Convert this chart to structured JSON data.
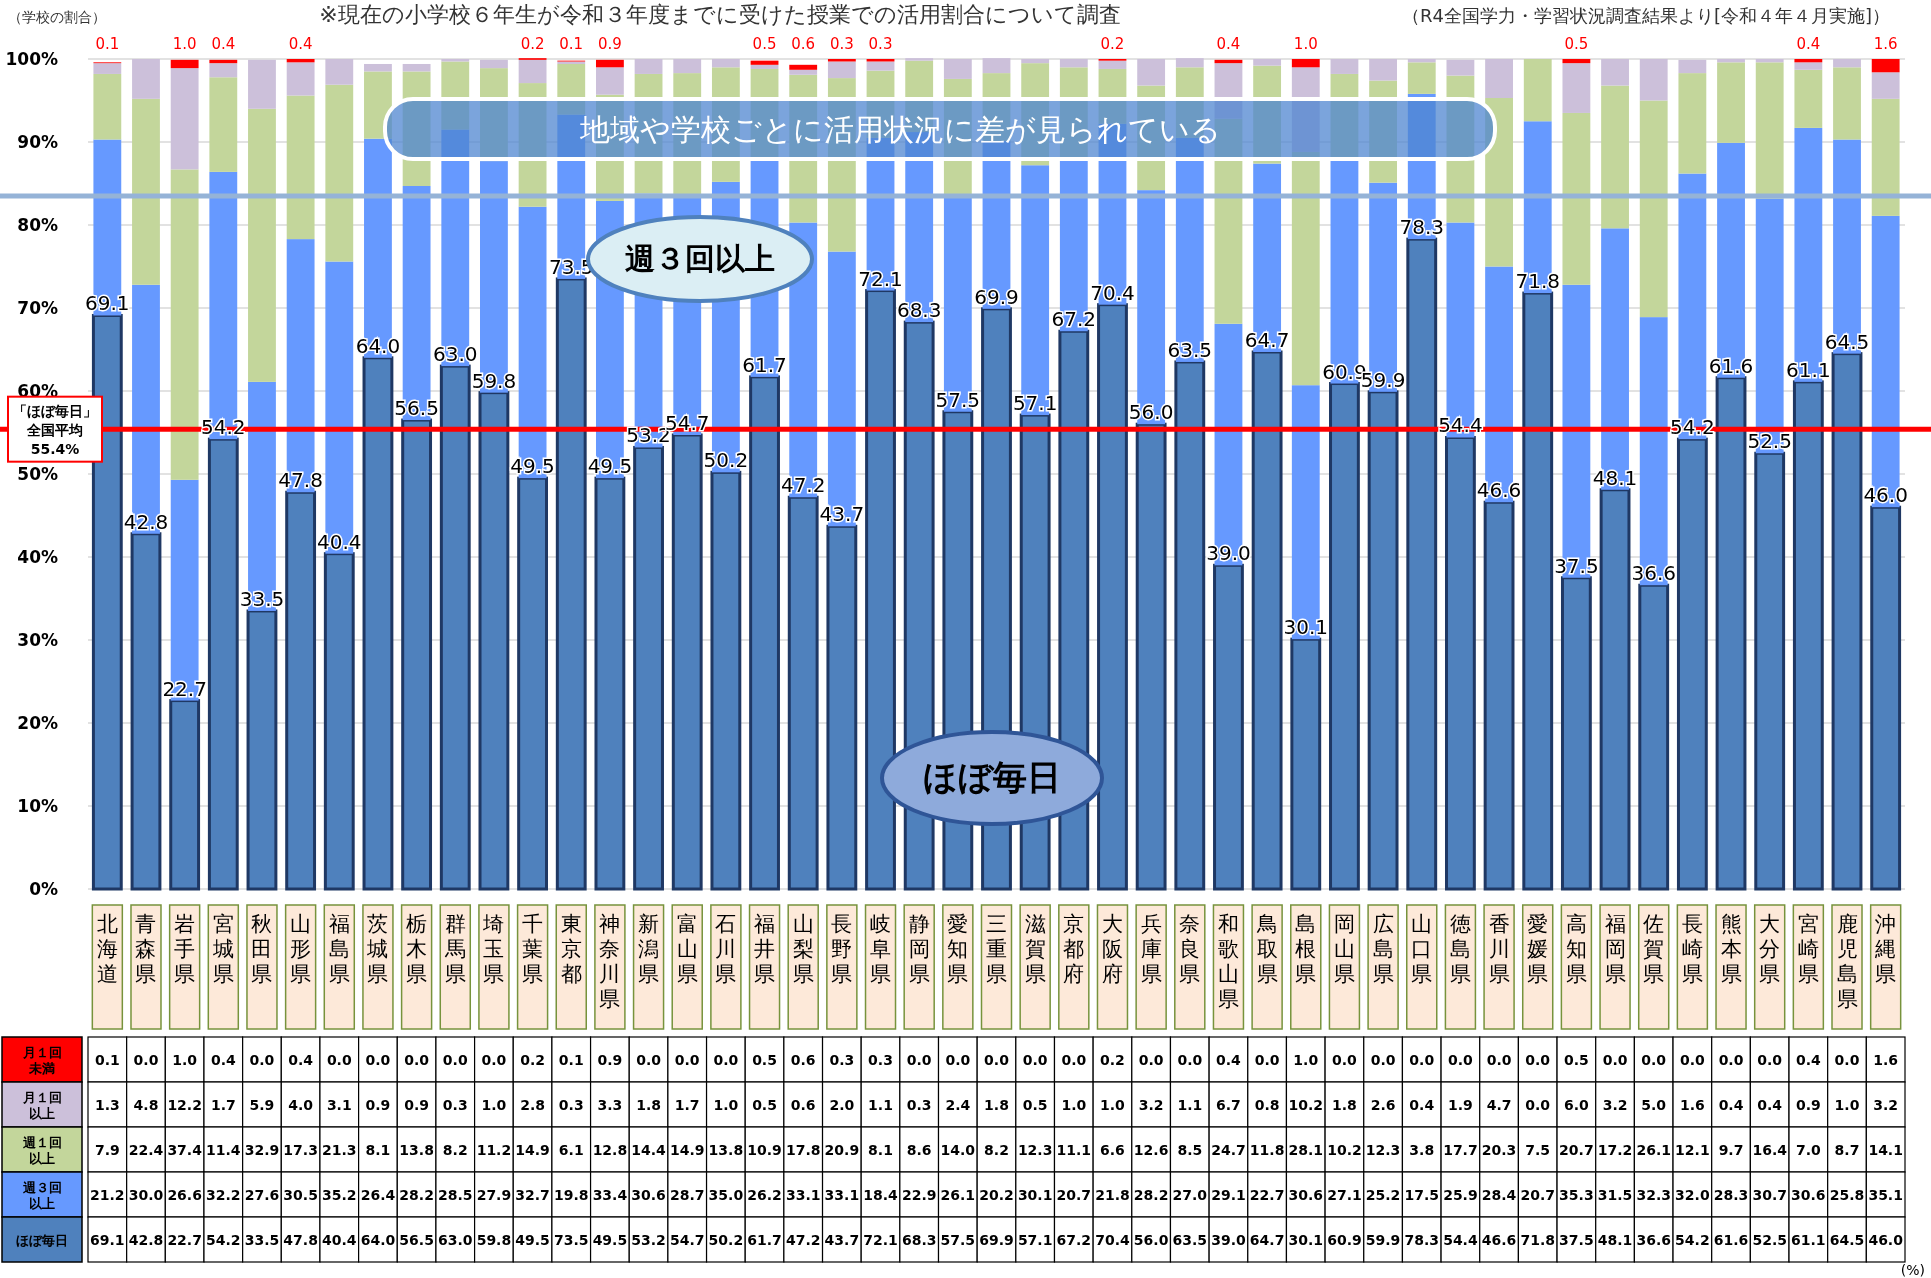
{
  "chart_data": {
    "type": "bar",
    "stacked": true,
    "title": "※現在の小学校６年生が令和３年度までに受けた授業での活用割合について調査",
    "subtitle": "（R4全国学力・学習状況調査結果より[令和４年４月実施]）",
    "ylabel": "（学校の割合）",
    "categories": [
      "北海道",
      "青森県",
      "岩手県",
      "宮城県",
      "秋田県",
      "山形県",
      "福島県",
      "茨城県",
      "栃木県",
      "群馬県",
      "埼玉県",
      "千葉県",
      "東京都",
      "神奈川県",
      "新潟県",
      "富山県",
      "石川県",
      "福井県",
      "山梨県",
      "長野県",
      "岐阜県",
      "静岡県",
      "愛知県",
      "三重県",
      "滋賀県",
      "京都府",
      "大阪府",
      "兵庫県",
      "奈良県",
      "和歌山県",
      "鳥取県",
      "島根県",
      "岡山県",
      "広島県",
      "山口県",
      "徳島県",
      "香川県",
      "愛媛県",
      "高知県",
      "福岡県",
      "佐賀県",
      "長崎県",
      "熊本県",
      "大分県",
      "宮崎県",
      "鹿児島県",
      "沖縄県"
    ],
    "series": [
      {
        "name": "ほぼ毎日",
        "color": "#4f81bd",
        "values": [
          69.1,
          42.8,
          22.7,
          54.2,
          33.5,
          47.8,
          40.4,
          64.0,
          56.5,
          63.0,
          59.8,
          49.5,
          73.5,
          49.5,
          53.2,
          54.7,
          50.2,
          61.7,
          47.2,
          43.7,
          72.1,
          68.3,
          57.5,
          69.9,
          57.1,
          67.2,
          70.4,
          56.0,
          63.5,
          39.0,
          64.7,
          30.1,
          60.9,
          59.9,
          78.3,
          54.4,
          46.6,
          71.8,
          37.5,
          48.1,
          36.6,
          54.2,
          61.6,
          52.5,
          61.1,
          64.5,
          46.0
        ],
        "value_labels": [
          "69.1",
          "42.8",
          "22.7",
          "54.2",
          "33.5",
          "47.8",
          "40.4",
          "64.0",
          "56.5",
          "63.0",
          "59.8",
          "49.5",
          "73.5",
          "49.5",
          "53.2",
          "54.7",
          "50.2",
          "61.7",
          "47.2",
          "43.7",
          "72.1",
          "68.3",
          "57.5",
          "69.9",
          "57.1",
          "67.2",
          "70.4",
          "56.0",
          "63.5",
          "39.0",
          "64.7",
          "30.1",
          "60.9",
          "59.9",
          "78.3",
          "54.4",
          "46.6",
          "71.8",
          "37.5",
          "48.1",
          "36.6",
          "54.2",
          "61.6",
          "52.5",
          "61.1",
          "64.5",
          "46.0"
        ]
      },
      {
        "name": "週３回以上",
        "color": "#6699ff",
        "values": [
          21.2,
          30.0,
          26.6,
          32.2,
          27.6,
          30.5,
          35.2,
          26.4,
          28.2,
          28.5,
          27.9,
          32.7,
          19.8,
          33.4,
          30.6,
          28.7,
          35.0,
          26.2,
          33.1,
          33.1,
          18.4,
          22.9,
          26.1,
          20.2,
          30.1,
          20.7,
          21.8,
          28.2,
          27.0,
          29.1,
          22.7,
          30.6,
          27.1,
          25.2,
          17.5,
          25.9,
          28.4,
          20.7,
          35.3,
          31.5,
          32.3,
          32.0,
          28.3,
          30.7,
          30.6,
          25.8,
          35.1
        ],
        "value_labels": [
          "21.2",
          "30.0",
          "26.6",
          "32.2",
          "27.6",
          "30.5",
          "35.2",
          "26.4",
          "28.2",
          "28.5",
          "27.9",
          "32.7",
          "19.8",
          "33.4",
          "30.6",
          "28.7",
          "35.0",
          "26.2",
          "33.1",
          "33.1",
          "18.4",
          "22.9",
          "26.1",
          "20.2",
          "30.1",
          "20.7",
          "21.8",
          "28.2",
          "27.0",
          "29.1",
          "22.7",
          "30.6",
          "27.1",
          "25.2",
          "17.5",
          "25.9",
          "28.4",
          "20.7",
          "35.3",
          "31.5",
          "32.3",
          "32.0",
          "28.3",
          "30.7",
          "30.6",
          "25.8",
          "35.1"
        ]
      },
      {
        "name": "週１回以上",
        "color": "#c3d69b",
        "values": [
          7.9,
          22.4,
          37.4,
          11.4,
          32.9,
          17.3,
          21.3,
          8.1,
          13.8,
          8.2,
          11.2,
          14.9,
          6.1,
          12.8,
          14.4,
          14.9,
          13.8,
          10.9,
          17.8,
          20.9,
          8.1,
          8.6,
          14.0,
          8.2,
          12.3,
          11.1,
          6.6,
          12.6,
          8.5,
          24.7,
          11.8,
          28.1,
          10.2,
          12.3,
          3.8,
          17.7,
          20.3,
          7.5,
          20.7,
          17.2,
          26.1,
          12.1,
          9.7,
          16.4,
          7.0,
          8.7,
          14.1
        ],
        "value_labels": [
          "7.9",
          "22.4",
          "37.4",
          "11.4",
          "32.9",
          "17.3",
          "21.3",
          "8.1",
          "13.8",
          "8.2",
          "11.2",
          "14.9",
          "6.1",
          "12.8",
          "14.4",
          "14.9",
          "13.8",
          "10.9",
          "17.8",
          "20.9",
          "8.1",
          "8.6",
          "14.0",
          "8.2",
          "12.3",
          "11.1",
          "6.6",
          "12.6",
          "8.5",
          "24.7",
          "11.8",
          "28.1",
          "10.2",
          "12.3",
          "3.8",
          "17.7",
          "20.3",
          "7.5",
          "20.7",
          "17.2",
          "26.1",
          "12.1",
          "9.7",
          "16.4",
          "7.0",
          "8.7",
          "14.1"
        ]
      },
      {
        "name": "月１回以上",
        "color": "#ccc0da",
        "values": [
          1.3,
          4.8,
          12.2,
          1.7,
          5.9,
          4.0,
          3.1,
          0.9,
          0.9,
          0.3,
          1.0,
          2.8,
          0.3,
          3.3,
          1.8,
          1.7,
          1.0,
          0.5,
          0.6,
          2.0,
          1.1,
          0.3,
          2.4,
          1.8,
          0.5,
          1.0,
          1.0,
          3.2,
          1.1,
          6.7,
          0.8,
          10.2,
          1.8,
          2.6,
          0.4,
          1.9,
          4.7,
          0.0,
          6.0,
          3.2,
          5.0,
          1.6,
          0.4,
          0.4,
          0.9,
          1.0,
          3.2
        ],
        "value_labels": [
          "1.3",
          "4.8",
          "12.2",
          "1.7",
          "5.9",
          "4.0",
          "3.1",
          "0.9",
          "0.9",
          "0.3",
          "1.0",
          "2.8",
          "0.3",
          "3.3",
          "1.8",
          "1.7",
          "1.0",
          "0.5",
          "0.6",
          "2.0",
          "1.1",
          "0.3",
          "2.4",
          "1.8",
          "0.5",
          "1.0",
          "1.0",
          "3.2",
          "1.1",
          "6.7",
          "0.8",
          "10.2",
          "1.8",
          "2.6",
          "0.4",
          "1.9",
          "4.7",
          "0.0",
          "6.0",
          "3.2",
          "5.0",
          "1.6",
          "0.4",
          "0.4",
          "0.9",
          "1.0",
          "3.2"
        ]
      },
      {
        "name": "月１回未満",
        "color": "#ff0000",
        "values": [
          0.1,
          0.0,
          1.0,
          0.4,
          0.0,
          0.4,
          0.0,
          0.0,
          0.0,
          0.0,
          0.0,
          0.2,
          0.1,
          0.9,
          0.0,
          0.0,
          0.0,
          0.5,
          0.6,
          0.3,
          0.3,
          0.0,
          0.0,
          0.0,
          0.0,
          0.0,
          0.2,
          0.0,
          0.0,
          0.4,
          0.0,
          1.0,
          0.0,
          0.0,
          0.0,
          0.0,
          0.0,
          0.0,
          0.5,
          0.0,
          0.0,
          0.0,
          0.0,
          0.0,
          0.4,
          0.0,
          1.6
        ],
        "value_labels": [
          "0.1",
          "0.0",
          "1.0",
          "0.4",
          "0.0",
          "0.4",
          "0.0",
          "0.0",
          "0.0",
          "0.0",
          "0.0",
          "0.2",
          "0.1",
          "0.9",
          "0.0",
          "0.0",
          "0.0",
          "0.5",
          "0.6",
          "0.3",
          "0.3",
          "0.0",
          "0.0",
          "0.0",
          "0.0",
          "0.0",
          "0.2",
          "0.0",
          "0.0",
          "0.4",
          "0.0",
          "1.0",
          "0.0",
          "0.0",
          "0.0",
          "0.0",
          "0.0",
          "0.0",
          "0.5",
          "0.0",
          "0.0",
          "0.0",
          "0.0",
          "0.0",
          "0.4",
          "0.0",
          "1.6"
        ]
      }
    ],
    "ylim": [
      0,
      100
    ],
    "yticks": [
      {
        "value": 0,
        "label": "0%"
      },
      {
        "value": 10,
        "label": "10%"
      },
      {
        "value": 20,
        "label": "20%"
      },
      {
        "value": 30,
        "label": "30%"
      },
      {
        "value": 40,
        "label": "40%"
      },
      {
        "value": 50,
        "label": "50%"
      },
      {
        "value": 60,
        "label": "60%"
      },
      {
        "value": 70,
        "label": "70%"
      },
      {
        "value": 80,
        "label": "80%"
      },
      {
        "value": 90,
        "label": "90%"
      },
      {
        "value": 100,
        "label": "100%"
      }
    ],
    "grid": "y",
    "ref_lines": [
      {
        "axis": "y",
        "value": 55.4,
        "label": "「ほぼ毎日」全国平均55.4%",
        "color": "#ff0000"
      },
      {
        "axis": "y",
        "value": 83.5,
        "color": "#95b3d7"
      }
    ],
    "annotations": [
      "地域や学校ごとに活用状況に差が見られている",
      "(%)"
    ]
  }
}
